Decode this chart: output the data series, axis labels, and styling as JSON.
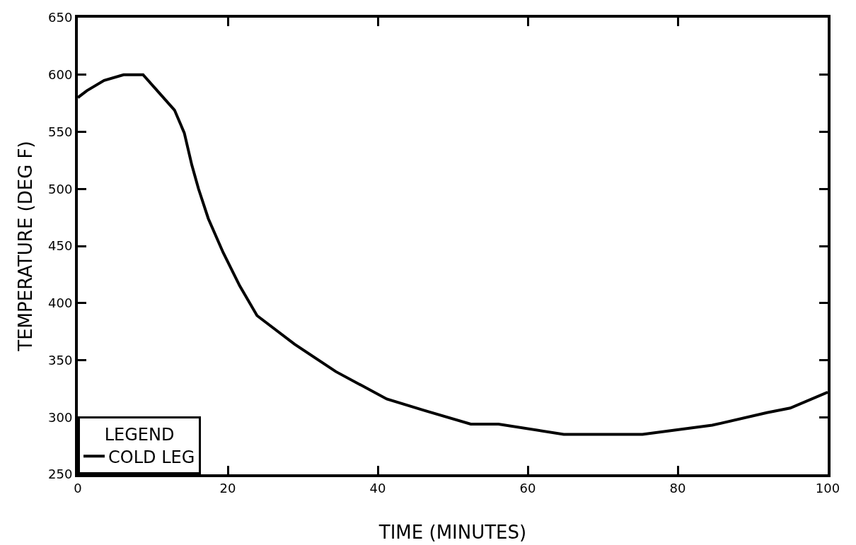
{
  "chart_data": {
    "type": "line",
    "xlabel": "TIME (MINUTES)",
    "ylabel": "TEMPERATURE (DEG F)",
    "legend_title": "LEGEND",
    "legend": "bottom left",
    "grid": false,
    "marker": "none",
    "line_style": "solid",
    "xlim": [
      0,
      100
    ],
    "xticks": [
      0,
      20,
      40,
      60,
      80,
      100
    ],
    "ylim": [
      250,
      650
    ],
    "yticks": [
      250,
      300,
      350,
      400,
      450,
      500,
      550,
      600,
      650
    ],
    "series": [
      {
        "name": "COLD LEG",
        "color": "#000000",
        "x": [
          0,
          1.2,
          3.5,
          6.1,
          8.7,
          10.6,
          12.9,
          14.2,
          15.2,
          16.1,
          17.4,
          19.4,
          21.6,
          23.9,
          28.9,
          34.4,
          41.2,
          46.2,
          52.4,
          56.1,
          64.8,
          75.3,
          84.6,
          91.9,
          95,
          100
        ],
        "values": [
          580,
          586,
          595,
          600,
          600,
          586,
          569,
          549,
          521,
          500,
          474,
          444,
          415,
          389,
          364,
          340,
          316,
          306,
          294,
          294,
          285,
          285,
          293,
          304,
          308,
          322
        ]
      }
    ]
  }
}
